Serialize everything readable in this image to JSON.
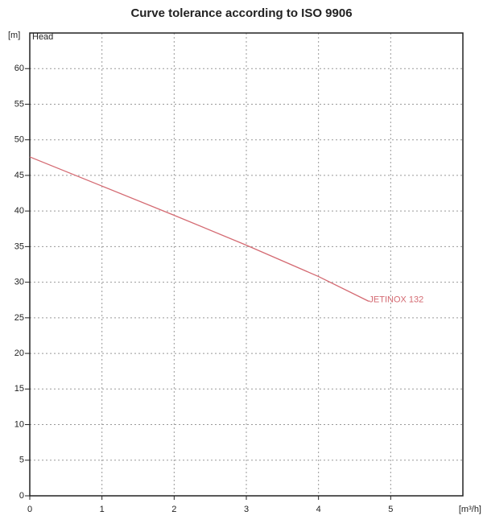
{
  "chart_data": {
    "type": "line",
    "title": "Curve tolerance according to ISO 9906",
    "y_unit": "[m]",
    "y_title": "Head",
    "x_unit": "[m³/h]",
    "x": [
      0,
      1,
      2,
      3,
      4,
      4.7
    ],
    "series": [
      {
        "name": "JETINOX 132",
        "color": "#d46a72",
        "values": [
          47.6,
          43.5,
          39.4,
          35.2,
          30.8,
          27.3
        ]
      }
    ],
    "xlim": [
      0,
      6
    ],
    "xticks": [
      0,
      1,
      2,
      3,
      4,
      5
    ],
    "ylim": [
      0,
      65
    ],
    "yticks": [
      0,
      5,
      10,
      15,
      20,
      25,
      30,
      35,
      40,
      45,
      50,
      55,
      60
    ],
    "grid": true
  }
}
